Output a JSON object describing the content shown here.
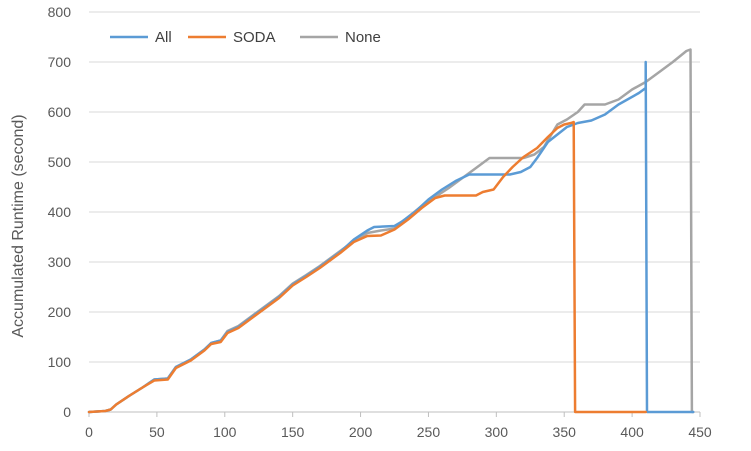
{
  "chart_data": {
    "type": "line",
    "title": "",
    "xlabel": "",
    "ylabel": "Accumulated Runtime (second)",
    "xlim": [
      0,
      450
    ],
    "ylim": [
      0,
      800
    ],
    "x_ticks": [
      "0",
      "50",
      "100",
      "150",
      "200",
      "250",
      "300",
      "350",
      "400",
      "450"
    ],
    "y_ticks": [
      "0",
      "100",
      "200",
      "300",
      "400",
      "500",
      "600",
      "700",
      "800"
    ],
    "grid": "horizontal",
    "legend_position": "top-left",
    "series": [
      {
        "name": "All",
        "color": "#5b9bd5",
        "points": [
          [
            0,
            0
          ],
          [
            12,
            2
          ],
          [
            16,
            5
          ],
          [
            20,
            15
          ],
          [
            30,
            33
          ],
          [
            40,
            50
          ],
          [
            48,
            65
          ],
          [
            58,
            67
          ],
          [
            64,
            90
          ],
          [
            75,
            105
          ],
          [
            85,
            125
          ],
          [
            90,
            138
          ],
          [
            97,
            143
          ],
          [
            102,
            160
          ],
          [
            110,
            170
          ],
          [
            120,
            190
          ],
          [
            130,
            210
          ],
          [
            140,
            230
          ],
          [
            150,
            255
          ],
          [
            160,
            272
          ],
          [
            170,
            290
          ],
          [
            185,
            320
          ],
          [
            195,
            345
          ],
          [
            205,
            363
          ],
          [
            210,
            370
          ],
          [
            225,
            372
          ],
          [
            230,
            380
          ],
          [
            240,
            400
          ],
          [
            250,
            425
          ],
          [
            260,
            445
          ],
          [
            270,
            462
          ],
          [
            280,
            475
          ],
          [
            310,
            475
          ],
          [
            318,
            480
          ],
          [
            325,
            490
          ],
          [
            330,
            508
          ],
          [
            338,
            540
          ],
          [
            345,
            555
          ],
          [
            352,
            570
          ],
          [
            360,
            578
          ],
          [
            370,
            583
          ],
          [
            380,
            595
          ],
          [
            390,
            615
          ],
          [
            405,
            638
          ],
          [
            410,
            648
          ],
          [
            410,
            700
          ],
          [
            411,
            0
          ],
          [
            445,
            0
          ]
        ]
      },
      {
        "name": "SODA",
        "color": "#ed7d31",
        "points": [
          [
            0,
            0
          ],
          [
            12,
            2
          ],
          [
            16,
            5
          ],
          [
            20,
            15
          ],
          [
            30,
            33
          ],
          [
            40,
            50
          ],
          [
            48,
            63
          ],
          [
            58,
            65
          ],
          [
            64,
            88
          ],
          [
            75,
            103
          ],
          [
            85,
            123
          ],
          [
            90,
            136
          ],
          [
            97,
            140
          ],
          [
            102,
            158
          ],
          [
            110,
            168
          ],
          [
            120,
            188
          ],
          [
            130,
            208
          ],
          [
            140,
            228
          ],
          [
            150,
            253
          ],
          [
            160,
            270
          ],
          [
            170,
            288
          ],
          [
            185,
            318
          ],
          [
            195,
            340
          ],
          [
            205,
            352
          ],
          [
            215,
            353
          ],
          [
            225,
            365
          ],
          [
            235,
            385
          ],
          [
            245,
            408
          ],
          [
            255,
            428
          ],
          [
            262,
            433
          ],
          [
            285,
            433
          ],
          [
            290,
            440
          ],
          [
            298,
            445
          ],
          [
            305,
            470
          ],
          [
            312,
            490
          ],
          [
            320,
            510
          ],
          [
            330,
            528
          ],
          [
            338,
            550
          ],
          [
            345,
            568
          ],
          [
            350,
            575
          ],
          [
            355,
            578
          ],
          [
            357,
            580
          ],
          [
            358,
            0
          ],
          [
            410,
            0
          ]
        ]
      },
      {
        "name": "None",
        "color": "#a5a5a5",
        "points": [
          [
            0,
            0
          ],
          [
            12,
            2
          ],
          [
            16,
            5
          ],
          [
            20,
            15
          ],
          [
            30,
            33
          ],
          [
            40,
            50
          ],
          [
            48,
            65
          ],
          [
            58,
            67
          ],
          [
            64,
            90
          ],
          [
            75,
            105
          ],
          [
            85,
            125
          ],
          [
            90,
            138
          ],
          [
            97,
            143
          ],
          [
            102,
            162
          ],
          [
            110,
            172
          ],
          [
            120,
            192
          ],
          [
            130,
            212
          ],
          [
            140,
            232
          ],
          [
            150,
            257
          ],
          [
            160,
            274
          ],
          [
            170,
            292
          ],
          [
            185,
            322
          ],
          [
            195,
            342
          ],
          [
            205,
            358
          ],
          [
            215,
            363
          ],
          [
            225,
            367
          ],
          [
            235,
            390
          ],
          [
            245,
            412
          ],
          [
            255,
            430
          ],
          [
            265,
            448
          ],
          [
            275,
            468
          ],
          [
            285,
            488
          ],
          [
            295,
            508
          ],
          [
            320,
            508
          ],
          [
            328,
            515
          ],
          [
            335,
            530
          ],
          [
            345,
            575
          ],
          [
            352,
            585
          ],
          [
            360,
            600
          ],
          [
            365,
            615
          ],
          [
            380,
            615
          ],
          [
            390,
            625
          ],
          [
            400,
            645
          ],
          [
            410,
            660
          ],
          [
            420,
            680
          ],
          [
            430,
            700
          ],
          [
            440,
            722
          ],
          [
            443,
            725
          ],
          [
            444,
            0
          ],
          [
            445,
            0
          ]
        ]
      }
    ]
  }
}
